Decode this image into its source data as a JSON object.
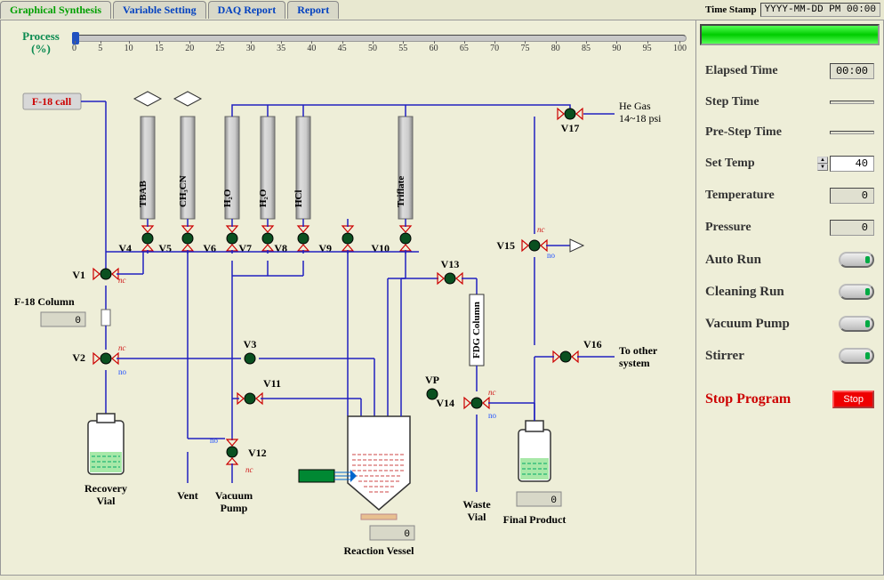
{
  "tabs": [
    "Graphical Synthesis",
    "Variable Setting",
    "DAQ Report",
    "Report"
  ],
  "active_tab": 0,
  "timestamp": {
    "label": "Time Stamp",
    "value": "YYYY-MM-DD PM 00:00"
  },
  "process": {
    "label": "Process\n(%)",
    "value": 0,
    "ticks": [
      "0",
      "5",
      "10",
      "15",
      "20",
      "25",
      "30",
      "35",
      "40",
      "45",
      "50",
      "55",
      "60",
      "65",
      "70",
      "75",
      "80",
      "85",
      "90",
      "95",
      "100"
    ]
  },
  "side": {
    "elapsed_time": {
      "label": "Elapsed Time",
      "value": "00:00"
    },
    "step_time": {
      "label": "Step Time",
      "value": ""
    },
    "pre_step_time": {
      "label": "Pre-Step Time",
      "value": ""
    },
    "set_temp": {
      "label": "Set Temp",
      "value": "40"
    },
    "temperature": {
      "label": "Temperature",
      "value": "0"
    },
    "pressure": {
      "label": "Pressure",
      "value": "0"
    },
    "auto_run": {
      "label": "Auto Run"
    },
    "cleaning_run": {
      "label": "Cleaning Run"
    },
    "vacuum_pump": {
      "label": "Vacuum Pump"
    },
    "stirrer": {
      "label": "Stirrer"
    },
    "stop": {
      "label": "Stop Program",
      "button": "Stop"
    }
  },
  "diagram": {
    "f18_call": "F-18 call",
    "reagents": [
      "TBAB",
      "CH₃CN",
      "H₂O",
      "H₂O",
      "HCl",
      "",
      "Triflate"
    ],
    "valves": {
      "V1": "V1",
      "V2": "V2",
      "V3": "V3",
      "V4": "V4",
      "V5": "V5",
      "V6": "V6",
      "V7": "V7",
      "V8": "V8",
      "V9": "V9",
      "V10": "V10",
      "V11": "V11",
      "V12": "V12",
      "V13": "V13",
      "V14": "V14",
      "V15": "V15",
      "V16": "V16",
      "V17": "V17",
      "VP": "VP"
    },
    "f18_column": {
      "label": "F-18 Column",
      "value": "0"
    },
    "recovery_vial": "Recovery\nVial",
    "vent": "Vent",
    "vacuum_pump": "Vacuum\nPump",
    "reaction_vessel": {
      "label": "Reaction Vessel",
      "value": "0"
    },
    "waste_vial": "Waste\nVial",
    "final_product": {
      "label": "Final Product",
      "value": "0"
    },
    "fdg_column": "FDG Column",
    "he_gas": "He Gas\n14~18 psi",
    "to_other": "To other\nsystem",
    "no": "no",
    "nc": "nc"
  }
}
